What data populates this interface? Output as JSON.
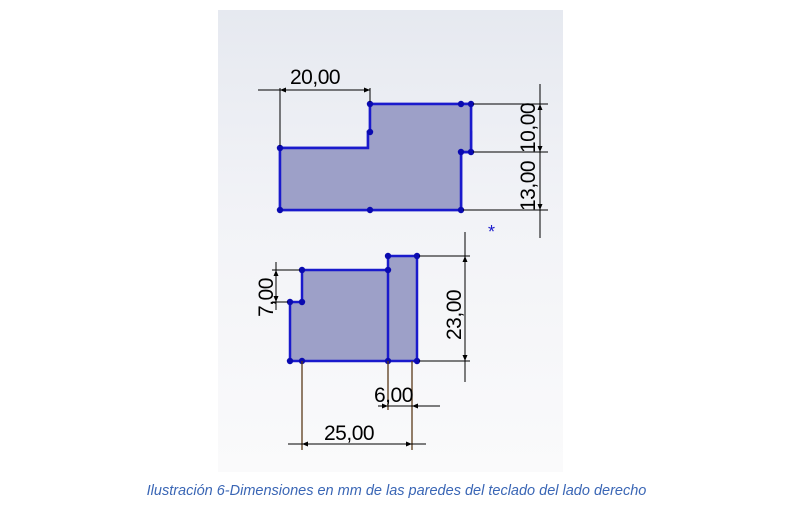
{
  "figure": {
    "dimensions": {
      "top_width": "20,00",
      "top_right_small": "10,00",
      "top_right_height": "13,00",
      "bottom_left_height": "7,00",
      "bottom_right_height": "23,00",
      "bottom_small_width": "6,00",
      "bottom_total_width": "25,00"
    },
    "origin_marker": "*",
    "colors": {
      "shape_fill": "#9da0c8",
      "shape_stroke": "#1a1acc",
      "vertex": "#0a0ab0",
      "dimension_line": "#000000",
      "construction_line": "#5a3a1a"
    }
  },
  "caption": {
    "text": "Ilustración 6-Dimensiones en mm de las paredes del teclado del lado derecho"
  }
}
